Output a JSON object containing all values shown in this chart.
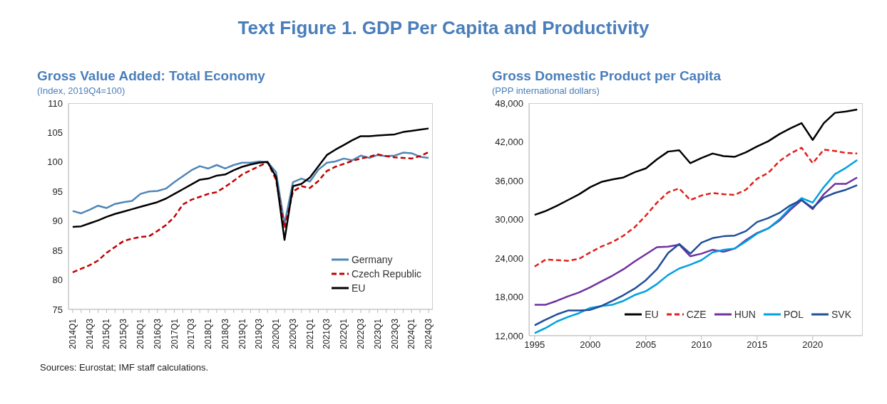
{
  "chart_data": [
    {
      "type": "other",
      "title": "Text Figure 1. GDP Per Capita and Productivity"
    },
    {
      "type": "line",
      "title": "Gross Value Added: Total Economy",
      "subtitle": "(Index, 2019Q4=100)",
      "categories": [
        "2014Q1",
        null,
        "2014Q3",
        null,
        "2015Q1",
        null,
        "2015Q3",
        null,
        "2016Q1",
        null,
        "2016Q3",
        null,
        "2017Q1",
        null,
        "2017Q3",
        null,
        "2018Q1",
        null,
        "2018Q3",
        null,
        "2019Q1",
        null,
        "2019Q3",
        null,
        "2020Q1",
        null,
        "2020Q3",
        null,
        "2021Q1",
        null,
        "2021Q3",
        null,
        "2022Q1",
        null,
        "2022Q3",
        null,
        "2023Q1",
        null,
        "2023Q3",
        null,
        "2024Q1",
        null,
        "2024Q3"
      ],
      "series": [
        {
          "name": "Germany",
          "color": "#4f86b8",
          "values": [
            91.7,
            91.3,
            91.9,
            92.6,
            92.2,
            92.9,
            93.2,
            93.4,
            94.6,
            95.0,
            95.1,
            95.5,
            96.6,
            97.6,
            98.6,
            99.3,
            98.9,
            99.5,
            98.9,
            99.5,
            99.9,
            99.9,
            100.1,
            100.0,
            98.3,
            89.5,
            96.6,
            97.2,
            96.7,
            98.7,
            99.9,
            100.1,
            100.6,
            100.3,
            101.1,
            100.7,
            101.2,
            101.0,
            101.1,
            101.6,
            101.5,
            100.9,
            100.7
          ]
        },
        {
          "name": "Czech Republic",
          "color": "#c00000",
          "line_style": "dashed",
          "values": [
            81.3,
            81.9,
            82.5,
            83.3,
            84.6,
            85.6,
            86.6,
            87.0,
            87.3,
            87.4,
            88.3,
            89.3,
            90.7,
            92.8,
            93.6,
            94.1,
            94.6,
            94.9,
            95.8,
            96.8,
            97.9,
            98.6,
            99.3,
            100.0,
            97.0,
            88.8,
            95.0,
            95.9,
            95.6,
            96.8,
            98.5,
            99.2,
            99.7,
            100.2,
            100.6,
            100.9,
            101.3,
            101.0,
            100.8,
            100.7,
            100.6,
            101.0,
            101.7
          ]
        },
        {
          "name": "EU",
          "color": "#000000",
          "values": [
            89.0,
            89.1,
            89.6,
            90.1,
            90.7,
            91.2,
            91.6,
            92.0,
            92.4,
            92.8,
            93.2,
            93.8,
            94.6,
            95.4,
            96.2,
            97.0,
            97.2,
            97.7,
            97.9,
            98.6,
            99.2,
            99.6,
            99.9,
            100.0,
            97.5,
            86.8,
            95.9,
            96.3,
            97.4,
            99.3,
            101.2,
            102.1,
            102.9,
            103.7,
            104.4,
            104.4,
            104.5,
            104.6,
            104.7,
            105.1,
            105.3,
            105.5,
            105.7
          ]
        }
      ],
      "ylim": [
        75,
        110
      ],
      "yticks": [
        75,
        80,
        85,
        90,
        95,
        100,
        105,
        110
      ],
      "grid": false,
      "legend": "bottom right",
      "marker": "none",
      "line_style": "solid",
      "annotations": [
        "Sources: Eurostat; IMF staff calculations."
      ]
    },
    {
      "type": "line",
      "title": "Gross Domestic Product per Capita",
      "subtitle": "(PPP international dollars)",
      "x": [
        1995,
        1996,
        1997,
        1998,
        1999,
        2000,
        2001,
        2002,
        2003,
        2004,
        2005,
        2006,
        2007,
        2008,
        2009,
        2010,
        2011,
        2012,
        2013,
        2014,
        2015,
        2016,
        2017,
        2018,
        2019,
        2020,
        2021,
        2022,
        2023,
        2024
      ],
      "series": [
        {
          "name": "EU",
          "color": "#000000",
          "values": [
            30700,
            31300,
            32100,
            33000,
            33900,
            35000,
            35800,
            36200,
            36500,
            37300,
            37900,
            39300,
            40500,
            40700,
            38700,
            39500,
            40200,
            39800,
            39700,
            40400,
            41300,
            42100,
            43200,
            44100,
            44900,
            42300,
            44900,
            46500,
            46700,
            47000
          ]
        },
        {
          "name": "CZE",
          "color": "#e0201b",
          "line_style": "dashed",
          "values": [
            22700,
            23800,
            23700,
            23600,
            23900,
            24900,
            25800,
            26500,
            27500,
            28800,
            30600,
            32600,
            34200,
            34800,
            33000,
            33700,
            34100,
            33900,
            33800,
            34600,
            36300,
            37200,
            39000,
            40200,
            41100,
            38700,
            40800,
            40600,
            40300,
            40200
          ]
        },
        {
          "name": "HUN",
          "color": "#7030a0",
          "values": [
            16800,
            16800,
            17400,
            18100,
            18700,
            19500,
            20400,
            21300,
            22300,
            23500,
            24600,
            25700,
            25800,
            26100,
            24300,
            24700,
            25300,
            25000,
            25500,
            26800,
            27900,
            28600,
            29800,
            31500,
            33000,
            31600,
            33900,
            35500,
            35500,
            36500
          ]
        },
        {
          "name": "POL",
          "color": "#00a0e0",
          "values": [
            12400,
            13200,
            14200,
            14900,
            15500,
            16300,
            16600,
            16800,
            17400,
            18300,
            18900,
            20000,
            21400,
            22400,
            23000,
            23700,
            24900,
            25300,
            25500,
            26600,
            27800,
            28600,
            30000,
            31800,
            33300,
            32600,
            35000,
            37000,
            38000,
            39200
          ]
        },
        {
          "name": "SVK",
          "color": "#1f4e99",
          "values": [
            13600,
            14500,
            15300,
            15900,
            15900,
            16000,
            16600,
            17400,
            18300,
            19300,
            20600,
            22300,
            24800,
            26200,
            24700,
            26400,
            27100,
            27400,
            27500,
            28200,
            29600,
            30200,
            31000,
            32200,
            33000,
            31800,
            33400,
            34100,
            34600,
            35300
          ]
        }
      ],
      "xlim": [
        1994.5,
        2024.5
      ],
      "xticks": [
        1995,
        2000,
        2005,
        2010,
        2015,
        2020
      ],
      "ylim": [
        12000,
        48000
      ],
      "yticks": [
        {
          "value": 12000,
          "label": "12,000"
        },
        {
          "value": 18000,
          "label": "18,000"
        },
        {
          "value": 24000,
          "label": "24,000"
        },
        {
          "value": 30000,
          "label": "30,000"
        },
        {
          "value": 36000,
          "label": "36,000"
        },
        {
          "value": 42000,
          "label": "42,000"
        },
        {
          "value": 48000,
          "label": "48,000"
        }
      ],
      "grid": false,
      "legend": "bottom right",
      "marker": "none",
      "line_style": "solid"
    }
  ]
}
